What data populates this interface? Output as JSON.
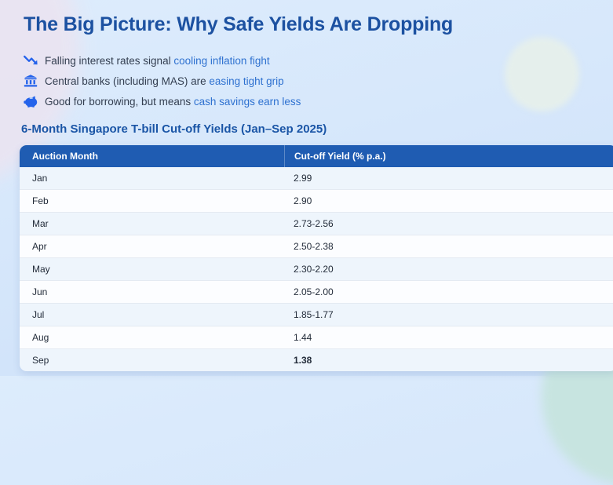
{
  "page": {
    "title": "The Big Picture: Why Safe Yields Are Dropping"
  },
  "bullets": [
    {
      "icon": "trend-down-icon",
      "prefix": "Falling interest rates signal ",
      "highlight": "cooling inflation fight"
    },
    {
      "icon": "bank-icon",
      "prefix": "Central banks (including MAS) are ",
      "highlight": "easing tight grip"
    },
    {
      "icon": "piggy-bank-icon",
      "prefix": "Good for borrowing, but means ",
      "highlight": "cash savings earn less"
    }
  ],
  "table": {
    "heading": "6-Month Singapore T-bill Cut-off Yields (Jan–Sep 2025)",
    "columns": [
      "Auction Month",
      "Cut-off Yield (% p.a.)"
    ],
    "rows": [
      {
        "month": "Jan",
        "yield": "2.99"
      },
      {
        "month": "Feb",
        "yield": "2.90"
      },
      {
        "month": "Mar",
        "yield": "2.73-2.56"
      },
      {
        "month": "Apr",
        "yield": "2.50-2.38"
      },
      {
        "month": "May",
        "yield": "2.30-2.20"
      },
      {
        "month": "Jun",
        "yield": "2.05-2.00"
      },
      {
        "month": "Jul",
        "yield": "1.85-1.77"
      },
      {
        "month": "Aug",
        "yield": "1.44"
      },
      {
        "month": "Sep",
        "yield": "1.38",
        "bold": true
      }
    ]
  },
  "colors": {
    "title_blue": "#1c51a1",
    "heading_blue": "#1a55a6",
    "link_blue": "#2e71d0",
    "icon_blue": "#2563eb",
    "table_header_bg": "#1f5cb2",
    "row_tint": "#eef5fc"
  }
}
